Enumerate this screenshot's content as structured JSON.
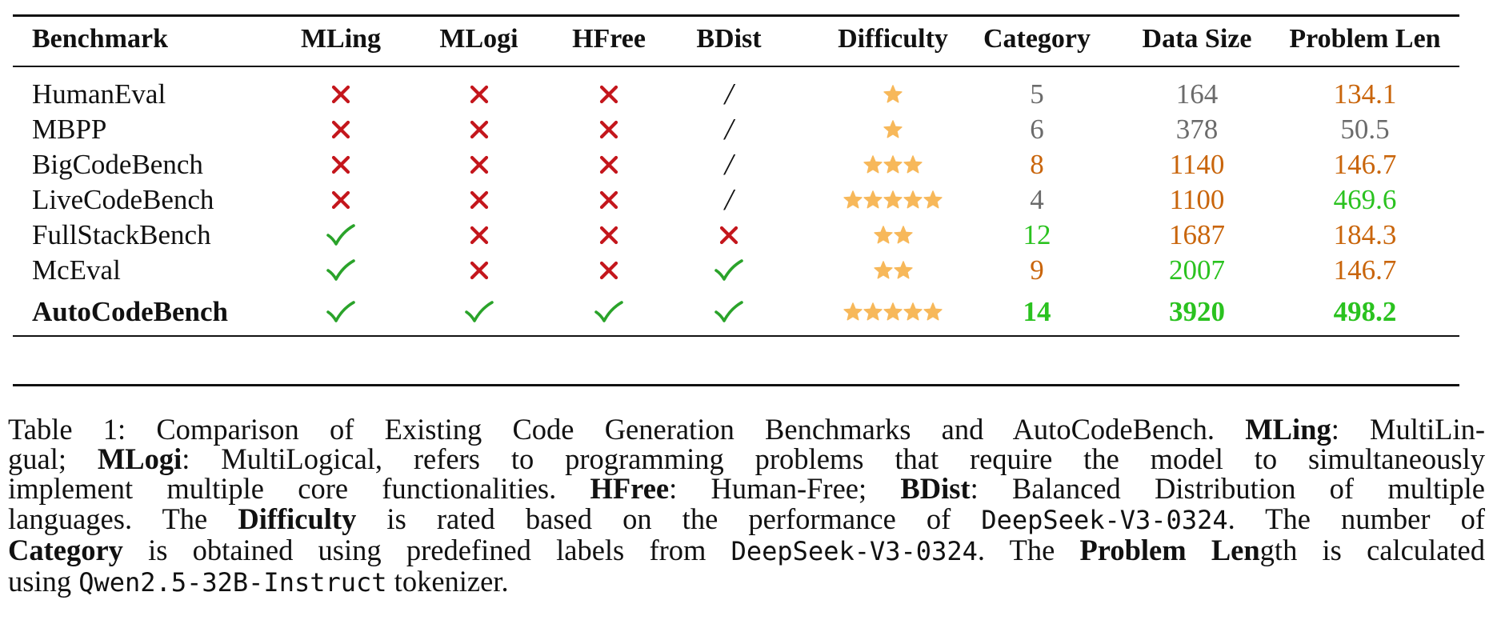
{
  "colors": {
    "cross": "#c4161c",
    "check": "#2aa32a",
    "star": "#f7b85a",
    "gray": "#6b6b6b",
    "orange": "#c9650b",
    "green": "#2ac21f"
  },
  "table": {
    "headers": [
      "Benchmark",
      "MLing",
      "MLogi",
      "HFree",
      "BDist",
      "Difficulty",
      "Category",
      "Data Size",
      "Problem Len"
    ],
    "rows": [
      {
        "name": "HumanEval",
        "mling": "cross",
        "mlogi": "cross",
        "hfree": "cross",
        "bdist": "slash",
        "slash_text": "/",
        "difficulty": 1,
        "category": "5",
        "category_color": "gray",
        "data_size": "164",
        "data_size_color": "gray",
        "problem_len": "134.1",
        "problem_len_color": "orange"
      },
      {
        "name": "MBPP",
        "mling": "cross",
        "mlogi": "cross",
        "hfree": "cross",
        "bdist": "slash",
        "slash_text": "/",
        "difficulty": 1,
        "category": "6",
        "category_color": "gray",
        "data_size": "378",
        "data_size_color": "gray",
        "problem_len": "50.5",
        "problem_len_color": "gray"
      },
      {
        "name": "BigCodeBench",
        "mling": "cross",
        "mlogi": "cross",
        "hfree": "cross",
        "bdist": "slash",
        "slash_text": "/",
        "difficulty": 3,
        "category": "8",
        "category_color": "orange",
        "data_size": "1140",
        "data_size_color": "orange",
        "problem_len": "146.7",
        "problem_len_color": "orange"
      },
      {
        "name": "LiveCodeBench",
        "mling": "cross",
        "mlogi": "cross",
        "hfree": "cross",
        "bdist": "slash",
        "slash_text": "/",
        "difficulty": 5,
        "category": "4",
        "category_color": "gray",
        "data_size": "1100",
        "data_size_color": "orange",
        "problem_len": "469.6",
        "problem_len_color": "green"
      },
      {
        "name": "FullStackBench",
        "mling": "check",
        "mlogi": "cross",
        "hfree": "cross",
        "bdist": "cross",
        "slash_text": "",
        "difficulty": 2,
        "category": "12",
        "category_color": "green",
        "data_size": "1687",
        "data_size_color": "orange",
        "problem_len": "184.3",
        "problem_len_color": "orange"
      },
      {
        "name": "McEval",
        "mling": "check",
        "mlogi": "cross",
        "hfree": "cross",
        "bdist": "check",
        "slash_text": "",
        "difficulty": 2,
        "category": "9",
        "category_color": "orange",
        "data_size": "2007",
        "data_size_color": "green",
        "problem_len": "146.7",
        "problem_len_color": "orange"
      },
      {
        "name": "AutoCodeBench",
        "bold": true,
        "mling": "check",
        "mlogi": "check",
        "hfree": "check",
        "bdist": "check",
        "slash_text": "",
        "difficulty": 5,
        "category": "14",
        "category_color": "green",
        "data_size": "3920",
        "data_size_color": "green",
        "problem_len": "498.2",
        "problem_len_color": "green"
      }
    ]
  },
  "caption": {
    "l1_a": "Table 1: Comparison of Existing Code Generation Benchmarks and AutoCodeBench. ",
    "l1_b": "MLing",
    "l1_c": ": MultiLin-",
    "l2_a": "gual; ",
    "l2_b": "MLogi",
    "l2_c": ": MultiLogical, refers to programming problems that require the model to simultaneously",
    "l3_a": "implement multiple core functionalities. ",
    "l3_b": "HFree",
    "l3_c": ": Human-Free; ",
    "l3_d": "BDist",
    "l3_e": ": Balanced Distribution of multiple",
    "l4_a": "languages.  The ",
    "l4_b": "Difficulty",
    "l4_c": " is rated based on the performance of ",
    "l4_d": "DeepSeek-V3-0324",
    "l4_e": ".  The number of",
    "l5_a": "Category",
    "l5_b": " is obtained using predefined labels from ",
    "l5_c": "DeepSeek-V3-0324",
    "l5_d": ". The ",
    "l5_e": "Problem Len",
    "l5_f": "gth is calculated",
    "l6_a": "using ",
    "l6_b": "Qwen2.5-32B-Instruct",
    "l6_c": " tokenizer."
  }
}
